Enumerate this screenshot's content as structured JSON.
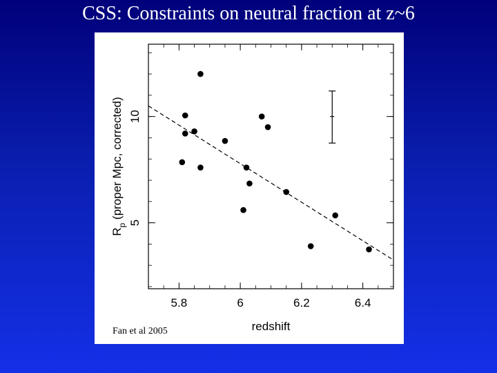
{
  "slide": {
    "title": "CSS: Constraints on neutral fraction at z~6"
  },
  "figure": {
    "credit": "Fan et al 2005"
  },
  "chart_data": {
    "type": "scatter",
    "xlabel": "redshift",
    "ylabel": "R_p (proper Mpc, corrected)",
    "ylabel_main": "R",
    "ylabel_sub": "p",
    "ylabel_rest": " (proper Mpc, corrected)",
    "xlim": [
      5.7,
      6.5
    ],
    "ylim": [
      1.9,
      13.4
    ],
    "x_ticks": [
      5.8,
      6.0,
      6.2,
      6.4
    ],
    "x_tick_labels": [
      "5.8",
      "6",
      "6.2",
      "6.4"
    ],
    "y_ticks": [
      5,
      10
    ],
    "y_tick_labels": [
      "5",
      "10"
    ],
    "points": [
      {
        "x": 5.87,
        "y": 12.0
      },
      {
        "x": 5.82,
        "y": 10.05
      },
      {
        "x": 5.82,
        "y": 9.2
      },
      {
        "x": 5.85,
        "y": 9.3
      },
      {
        "x": 5.81,
        "y": 7.85
      },
      {
        "x": 5.87,
        "y": 7.6
      },
      {
        "x": 5.95,
        "y": 8.85
      },
      {
        "x": 6.07,
        "y": 10.0
      },
      {
        "x": 6.09,
        "y": 9.5
      },
      {
        "x": 6.02,
        "y": 7.6
      },
      {
        "x": 6.03,
        "y": 6.85
      },
      {
        "x": 6.15,
        "y": 6.45
      },
      {
        "x": 6.01,
        "y": 5.6
      },
      {
        "x": 6.31,
        "y": 5.35
      },
      {
        "x": 6.23,
        "y": 3.9
      },
      {
        "x": 6.42,
        "y": 3.75
      }
    ],
    "fit_line": {
      "style": "dashed",
      "x": [
        5.7,
        6.5
      ],
      "y": [
        10.5,
        3.25
      ]
    },
    "error_bar": {
      "x": 6.3,
      "y": 10.0,
      "low": 8.75,
      "high": 11.2
    },
    "grid": false,
    "legend": false
  }
}
